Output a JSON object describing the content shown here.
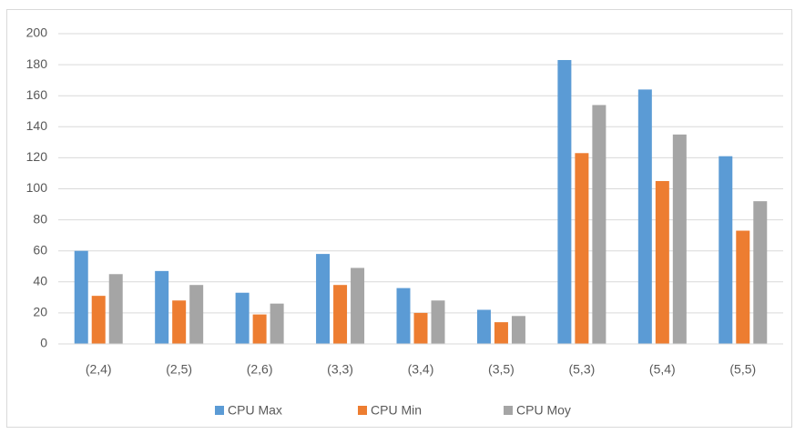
{
  "chart_data": {
    "type": "bar",
    "categories": [
      "(2,4)",
      "(2,5)",
      "(2,6)",
      "(3,3)",
      "(3,4)",
      "(3,5)",
      "(5,3)",
      "(5,4)",
      "(5,5)"
    ],
    "series": [
      {
        "name": "CPU Max",
        "color": "#5b9bd5",
        "values": [
          60,
          47,
          33,
          58,
          36,
          22,
          183,
          164,
          121
        ]
      },
      {
        "name": "CPU Min",
        "color": "#ed7d31",
        "values": [
          31,
          28,
          19,
          38,
          20,
          14,
          123,
          105,
          73
        ]
      },
      {
        "name": "CPU Moy",
        "color": "#a5a5a5",
        "values": [
          45,
          38,
          26,
          49,
          28,
          18,
          154,
          135,
          92
        ]
      }
    ],
    "ylim": [
      0,
      200
    ],
    "yticks": [
      0,
      20,
      40,
      60,
      80,
      100,
      120,
      140,
      160,
      180,
      200
    ],
    "grid": true,
    "legend": "bottom"
  }
}
